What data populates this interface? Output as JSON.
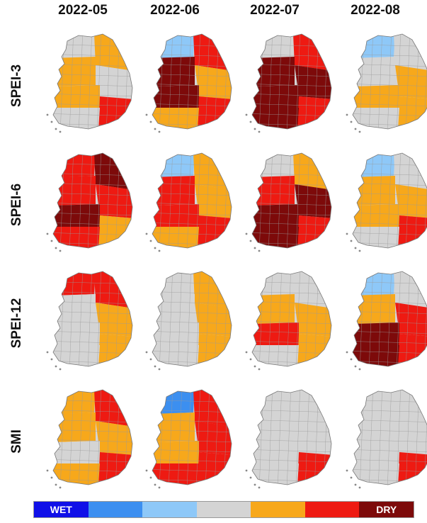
{
  "columns": [
    "2022-05",
    "2022-06",
    "2022-07",
    "2022-08"
  ],
  "rows": [
    "SPEI-3",
    "SPEI-6",
    "SPEI-12",
    "SMI"
  ],
  "legend": {
    "classes": [
      {
        "color": "#1010e8",
        "label": "WET"
      },
      {
        "color": "#3c8ff0",
        "label": ""
      },
      {
        "color": "#8ec8f8",
        "label": ""
      },
      {
        "color": "#d4d4d4",
        "label": ""
      },
      {
        "color": "#f7a81b",
        "label": ""
      },
      {
        "color": "#ee1a12",
        "label": ""
      },
      {
        "color": "#7d0a0a",
        "label": "DRY"
      }
    ]
  },
  "colors": {
    "wet_strong": "#1010e8",
    "wet": "#3c8ff0",
    "wet_light": "#8ec8f8",
    "normal": "#d4d4d4",
    "dry_mild": "#f7a81b",
    "dry": "#ee1a12",
    "dry_extreme": "#7d0a0a"
  },
  "panels": [
    {
      "row": "SPEI-3",
      "col": "2022-05",
      "pattern": [
        "normal",
        "dry_mild",
        "dry_mild",
        "normal",
        "dry_mild",
        "dry",
        "normal"
      ]
    },
    {
      "row": "SPEI-3",
      "col": "2022-06",
      "pattern": [
        "wet_light",
        "dry",
        "dry_extreme",
        "dry_mild",
        "dry_extreme",
        "dry",
        "dry_mild"
      ]
    },
    {
      "row": "SPEI-3",
      "col": "2022-07",
      "pattern": [
        "normal",
        "dry",
        "dry_extreme",
        "dry_extreme",
        "dry_extreme",
        "dry",
        "dry_extreme"
      ]
    },
    {
      "row": "SPEI-3",
      "col": "2022-08",
      "pattern": [
        "wet_light",
        "normal",
        "normal",
        "dry_mild",
        "dry_mild",
        "dry_mild",
        "normal"
      ]
    },
    {
      "row": "SPEI-6",
      "col": "2022-05",
      "pattern": [
        "dry",
        "dry_extreme",
        "dry",
        "dry",
        "dry_extreme",
        "dry_mild",
        "dry"
      ]
    },
    {
      "row": "SPEI-6",
      "col": "2022-06",
      "pattern": [
        "wet_light",
        "dry_mild",
        "dry",
        "dry_mild",
        "dry",
        "dry",
        "dry_mild"
      ]
    },
    {
      "row": "SPEI-6",
      "col": "2022-07",
      "pattern": [
        "normal",
        "dry_mild",
        "dry",
        "dry_extreme",
        "dry_extreme",
        "dry",
        "dry_extreme"
      ]
    },
    {
      "row": "SPEI-6",
      "col": "2022-08",
      "pattern": [
        "wet_light",
        "normal",
        "dry_mild",
        "dry_mild",
        "dry_mild",
        "dry",
        "normal"
      ]
    },
    {
      "row": "SPEI-12",
      "col": "2022-05",
      "pattern": [
        "dry",
        "dry",
        "normal",
        "dry_mild",
        "normal",
        "dry_mild",
        "normal"
      ]
    },
    {
      "row": "SPEI-12",
      "col": "2022-06",
      "pattern": [
        "normal",
        "dry_mild",
        "normal",
        "dry_mild",
        "normal",
        "dry_mild",
        "normal"
      ]
    },
    {
      "row": "SPEI-12",
      "col": "2022-07",
      "pattern": [
        "normal",
        "normal",
        "dry_mild",
        "dry_mild",
        "dry",
        "dry_mild",
        "normal"
      ]
    },
    {
      "row": "SPEI-12",
      "col": "2022-08",
      "pattern": [
        "wet_light",
        "normal",
        "dry_mild",
        "dry",
        "dry_extreme",
        "dry",
        "dry_extreme"
      ]
    },
    {
      "row": "SMI",
      "col": "2022-05",
      "pattern": [
        "dry_mild",
        "dry",
        "dry_mild",
        "dry_mild",
        "normal",
        "dry",
        "dry_mild"
      ]
    },
    {
      "row": "SMI",
      "col": "2022-06",
      "pattern": [
        "wet",
        "dry",
        "dry_mild",
        "dry",
        "dry_mild",
        "dry",
        "dry"
      ]
    },
    {
      "row": "SMI",
      "col": "2022-07",
      "pattern": [
        "normal",
        "normal",
        "normal",
        "normal",
        "normal",
        "dry",
        "normal"
      ]
    },
    {
      "row": "SMI",
      "col": "2022-08",
      "pattern": [
        "normal",
        "normal",
        "normal",
        "normal",
        "normal",
        "dry",
        "normal"
      ]
    }
  ]
}
